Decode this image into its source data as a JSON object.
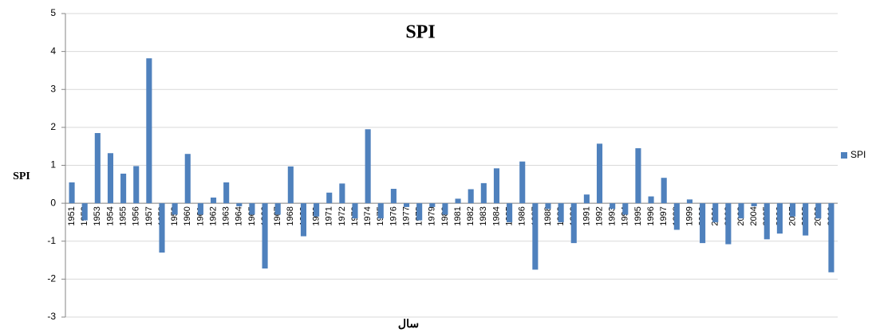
{
  "chart_data": {
    "type": "bar",
    "title": "SPI",
    "y_label": "SPI",
    "x_label": "سال",
    "categories": [
      "1951",
      "1952",
      "1953",
      "1954",
      "1955",
      "1956",
      "1957",
      "1958",
      "1959",
      "1960",
      "1961",
      "1962",
      "1963",
      "1964",
      "1965",
      "1966",
      "1967",
      "1968",
      "1969",
      "1970",
      "1971",
      "1972",
      "1973",
      "1974",
      "1975",
      "1976",
      "1977",
      "1978",
      "1979",
      "1980",
      "1981",
      "1982",
      "1983",
      "1984",
      "1985",
      "1986",
      "1987",
      "1988",
      "1989",
      "1990",
      "1991",
      "1992",
      "1993",
      "1994",
      "1995",
      "1996",
      "1997",
      "1998",
      "1999",
      "2000",
      "2001",
      "2002",
      "2003",
      "2004",
      "2005",
      "2006",
      "2007",
      "2008",
      "2009",
      "2010"
    ],
    "series": [
      {
        "name": "SPI",
        "color": "#4f81bd",
        "values": [
          0.55,
          -0.45,
          1.85,
          1.32,
          0.78,
          0.98,
          3.82,
          -1.3,
          -0.3,
          1.3,
          -0.3,
          0.15,
          0.55,
          -0.08,
          -0.3,
          -1.72,
          -0.3,
          0.97,
          -0.87,
          -0.35,
          0.28,
          0.52,
          -0.4,
          1.95,
          -0.4,
          0.38,
          -0.1,
          -0.45,
          -0.1,
          -0.3,
          0.12,
          0.37,
          0.53,
          0.92,
          -0.5,
          1.1,
          -1.75,
          -0.15,
          -0.5,
          -1.05,
          0.23,
          1.57,
          -0.15,
          -0.3,
          1.45,
          0.18,
          0.67,
          -0.7,
          0.1,
          -1.05,
          -0.5,
          -1.08,
          -0.4,
          -0.08,
          -0.95,
          -0.8,
          -0.35,
          -0.85,
          -0.4,
          -1.82
        ]
      }
    ],
    "ylim": [
      -3,
      5
    ],
    "yticks": [
      -3,
      -2,
      -1,
      0,
      1,
      2,
      3,
      4,
      5
    ],
    "grid": true,
    "legend": "right"
  }
}
